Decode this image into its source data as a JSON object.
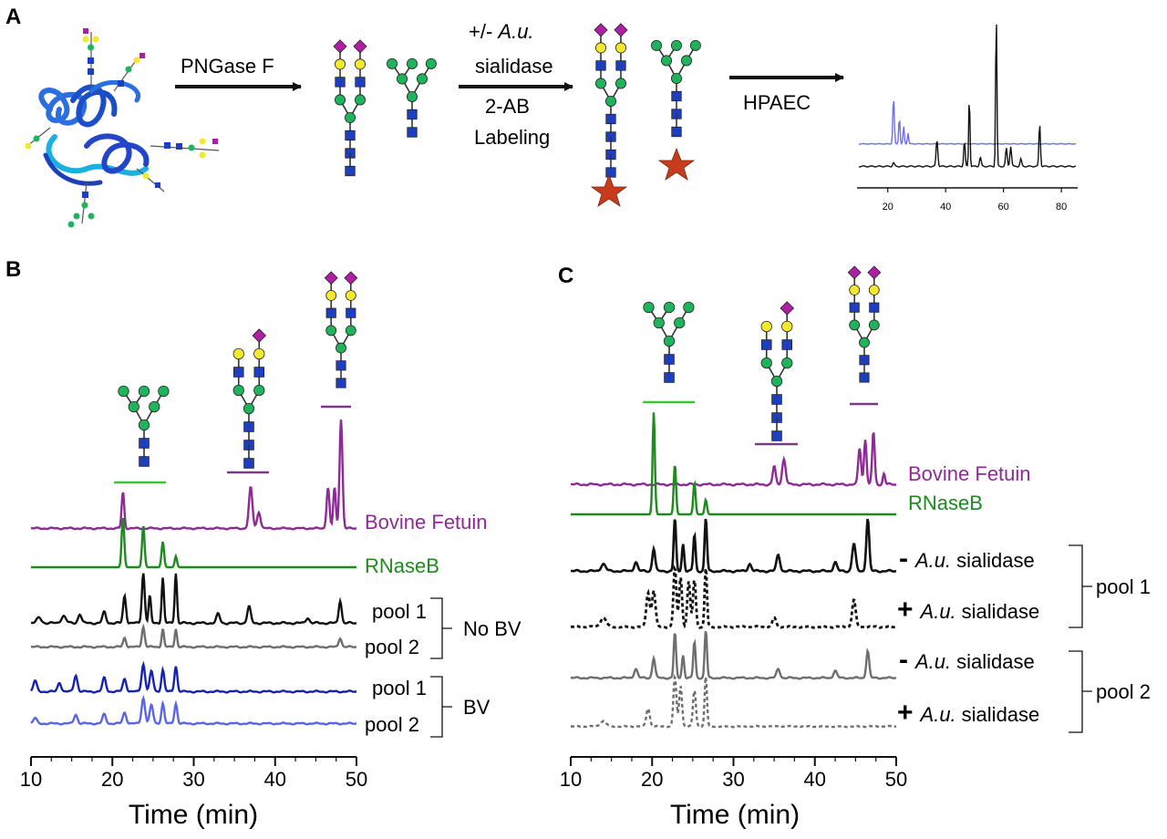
{
  "panel_labels": {
    "a": "A",
    "b": "B",
    "c": "C"
  },
  "panel_a": {
    "step1_label": "PNGase F",
    "step2_line1_prefix": "+/- ",
    "step2_line1_italic": "A.u.",
    "step2_line2": "sialidase",
    "step2_line3": "2-AB",
    "step2_line4": "Labeling",
    "step3_label": "HPAEC",
    "inset_ticks": [
      "20",
      "40",
      "60",
      "80"
    ]
  },
  "panel_b": {
    "trace_labels": {
      "fetuin": "Bovine Fetuin",
      "rnaseb": "RNaseB",
      "pool1_nobv": "pool 1",
      "pool2_nobv": "pool 2",
      "pool1_bv": "pool 1",
      "pool2_bv": "pool 2"
    },
    "group_labels": {
      "no_bv": "No BV",
      "bv": "BV"
    },
    "x_ticks": [
      "10",
      "20",
      "30",
      "40",
      "50"
    ],
    "x_label": "Time (min)"
  },
  "panel_c": {
    "trace_labels": {
      "fetuin": "Bovine Fetuin",
      "rnaseb": "RNaseB"
    },
    "sign_minus": "-",
    "sign_plus": "+",
    "enzyme_italic": "A.u.",
    "enzyme_word": "sialidase",
    "group_labels": {
      "pool1": "pool 1",
      "pool2": "pool 2"
    },
    "x_ticks": [
      "10",
      "20",
      "30",
      "40",
      "50"
    ],
    "x_label": "Time (min)"
  },
  "colors": {
    "fetuin": "#8e2a96",
    "rnaseb": "#1f8a1f",
    "pool1": "#111111",
    "pool2": "#6e6e6e",
    "bv1": "#1422b4",
    "bv2": "#5a64e6",
    "hex_man": "#1fb35c",
    "hex_gal": "#f2e92e",
    "glcnac": "#1d3fbf",
    "sialic": "#b01ea6",
    "label_star": "#c83c1e",
    "inset_blue": "#6d6ef0"
  }
}
